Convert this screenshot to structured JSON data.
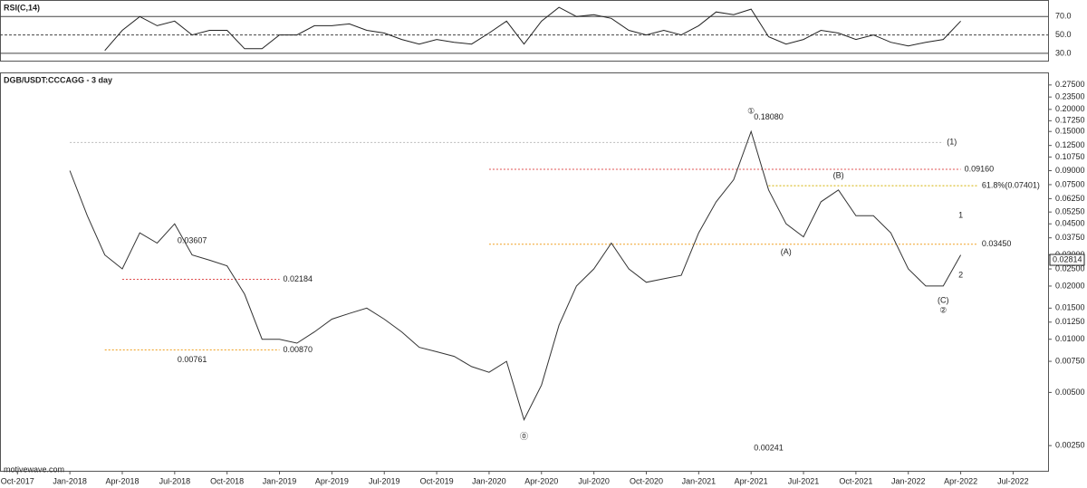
{
  "chart_data": [
    {
      "type": "line",
      "title": "RSI(C,14)",
      "x": [
        "Mar-2018",
        "Apr-2018",
        "May-2018",
        "Jun-2018",
        "Jul-2018",
        "Aug-2018",
        "Sep-2018",
        "Oct-2018",
        "Nov-2018",
        "Dec-2018",
        "Jan-2019",
        "Feb-2019",
        "Mar-2019",
        "Apr-2019",
        "May-2019",
        "Jun-2019",
        "Jul-2019",
        "Aug-2019",
        "Sep-2019",
        "Oct-2019",
        "Nov-2019",
        "Dec-2019",
        "Jan-2020",
        "Feb-2020",
        "Mar-2020",
        "Apr-2020",
        "May-2020",
        "Jun-2020",
        "Jul-2020",
        "Aug-2020",
        "Sep-2020",
        "Oct-2020",
        "Nov-2020",
        "Dec-2020",
        "Jan-2021",
        "Feb-2021",
        "Mar-2021",
        "Apr-2021",
        "May-2021",
        "Jun-2021",
        "Jul-2021",
        "Aug-2021",
        "Sep-2021",
        "Oct-2021",
        "Nov-2021",
        "Dec-2021",
        "Jan-2022",
        "Feb-2022",
        "Mar-2022",
        "Apr-2022"
      ],
      "series": [
        {
          "name": "RSI",
          "color": "#222222",
          "values": [
            33,
            55,
            70,
            60,
            65,
            50,
            55,
            55,
            35,
            35,
            50,
            50,
            60,
            60,
            62,
            55,
            52,
            45,
            40,
            45,
            42,
            40,
            52,
            65,
            40,
            65,
            80,
            70,
            72,
            68,
            55,
            50,
            55,
            50,
            60,
            75,
            72,
            78,
            48,
            40,
            45,
            55,
            52,
            45,
            50,
            42,
            38,
            42,
            45,
            65
          ]
        }
      ],
      "xlim": [
        "Sep-2017",
        "Sep-2022"
      ],
      "ylim": [
        22,
        87
      ],
      "yticks": [
        {
          "value": 70,
          "label": "70.0"
        },
        {
          "value": 50,
          "label": "50.0"
        },
        {
          "value": 30,
          "label": "30.0"
        }
      ]
    },
    {
      "type": "line",
      "title": "DGB/USDT:CCCAGG - 3 day",
      "log_scale": true,
      "x": [
        "Jan-2018",
        "Feb-2018",
        "Mar-2018",
        "Apr-2018",
        "May-2018",
        "Jun-2018",
        "Jul-2018",
        "Aug-2018",
        "Sep-2018",
        "Oct-2018",
        "Nov-2018",
        "Dec-2018",
        "Jan-2019",
        "Feb-2019",
        "Mar-2019",
        "Apr-2019",
        "May-2019",
        "Jun-2019",
        "Jul-2019",
        "Aug-2019",
        "Sep-2019",
        "Oct-2019",
        "Nov-2019",
        "Dec-2019",
        "Jan-2020",
        "Feb-2020",
        "Mar-2020",
        "Apr-2020",
        "May-2020",
        "Jun-2020",
        "Jul-2020",
        "Aug-2020",
        "Sep-2020",
        "Oct-2020",
        "Nov-2020",
        "Dec-2020",
        "Jan-2021",
        "Feb-2021",
        "Mar-2021",
        "Apr-2021",
        "May-2021",
        "Jun-2021",
        "Jul-2021",
        "Aug-2021",
        "Sep-2021",
        "Oct-2021",
        "Nov-2021",
        "Dec-2021",
        "Jan-2022",
        "Feb-2022",
        "Mar-2022",
        "Apr-2022"
      ],
      "series": [
        {
          "name": "DGB/USDT",
          "color": "#333333",
          "values": [
            0.09,
            0.05,
            0.03,
            0.025,
            0.04,
            0.035,
            0.045,
            0.03,
            0.028,
            0.026,
            0.018,
            0.01,
            0.01,
            0.0095,
            0.011,
            0.013,
            0.014,
            0.015,
            0.013,
            0.011,
            0.009,
            0.0085,
            0.008,
            0.007,
            0.0065,
            0.0075,
            0.0035,
            0.0055,
            0.012,
            0.02,
            0.025,
            0.035,
            0.025,
            0.021,
            0.022,
            0.023,
            0.04,
            0.06,
            0.08,
            0.15,
            0.07,
            0.045,
            0.038,
            0.06,
            0.07,
            0.05,
            0.05,
            0.04,
            0.025,
            0.02,
            0.02,
            0.03
          ]
        }
      ],
      "xlim": [
        "Sep-2017",
        "Sep-2022"
      ],
      "xticks": [
        "Oct-2017",
        "Jan-2018",
        "Apr-2018",
        "Jul-2018",
        "Oct-2018",
        "Jan-2019",
        "Apr-2019",
        "Jul-2019",
        "Oct-2019",
        "Jan-2020",
        "Apr-2020",
        "Jul-2020",
        "Oct-2020",
        "Jan-2021",
        "Apr-2021",
        "Jul-2021",
        "Oct-2021",
        "Jan-2022",
        "Apr-2022",
        "Jul-2022"
      ],
      "ylim": [
        0.0018,
        0.32
      ],
      "yticks": [
        {
          "value": 0.275,
          "label": "0.27500"
        },
        {
          "value": 0.235,
          "label": "0.23500"
        },
        {
          "value": 0.2,
          "label": "0.20000"
        },
        {
          "value": 0.1725,
          "label": "0.17250"
        },
        {
          "value": 0.15,
          "label": "0.15000"
        },
        {
          "value": 0.125,
          "label": "0.12500"
        },
        {
          "value": 0.1075,
          "label": "0.10750"
        },
        {
          "value": 0.09,
          "label": "0.09000"
        },
        {
          "value": 0.075,
          "label": "0.07500"
        },
        {
          "value": 0.0625,
          "label": "0.06250"
        },
        {
          "value": 0.0525,
          "label": "0.05250"
        },
        {
          "value": 0.045,
          "label": "0.04500"
        },
        {
          "value": 0.0375,
          "label": "0.03750"
        },
        {
          "value": 0.03,
          "label": "0.03000"
        },
        {
          "value": 0.025,
          "label": "0.02500"
        },
        {
          "value": 0.02,
          "label": "0.02000"
        },
        {
          "value": 0.015,
          "label": "0.01500"
        },
        {
          "value": 0.0125,
          "label": "0.01250"
        },
        {
          "value": 0.01,
          "label": "0.01000"
        },
        {
          "value": 0.0075,
          "label": "0.00750"
        },
        {
          "value": 0.005,
          "label": "0.00500"
        },
        {
          "value": 0.0025,
          "label": "0.00250"
        }
      ],
      "levels": [
        {
          "value": 0.13,
          "label": "(1)",
          "from": "Jan-2018",
          "to": "Mar-2022",
          "color": "#bbbbbb"
        },
        {
          "value": 0.0916,
          "label": "0.09160",
          "from": "Jan-2020",
          "to": "Apr-2022",
          "color": "#e05050"
        },
        {
          "value": 0.07401,
          "label": "61.8%(0.07401)",
          "from": "May-2021",
          "to": "May-2022",
          "color": "#d4b000"
        },
        {
          "value": 0.0345,
          "label": "0.03450",
          "from": "Jan-2020",
          "to": "May-2022",
          "color": "#f0a020"
        },
        {
          "value": 0.02184,
          "label": "0.02184",
          "from": "Apr-2018",
          "to": "Jan-2019",
          "color": "#e05050"
        },
        {
          "value": 0.0087,
          "label": "0.00870",
          "from": "Mar-2018",
          "to": "Jan-2019",
          "color": "#f0a020"
        }
      ],
      "price_labels": [
        {
          "x": "Aug-2018",
          "value": 0.03607,
          "label": "0.03607"
        },
        {
          "x": "Aug-2018",
          "value": 0.00761,
          "label": "0.00761"
        },
        {
          "x": "May-2021",
          "value": 0.1808,
          "label": "0.18080"
        },
        {
          "x": "May-2021",
          "value": 0.00241,
          "label": "0.00241"
        }
      ],
      "last_price": {
        "value": 0.02814,
        "label": "0.02814"
      },
      "annotations": [
        {
          "text": "①",
          "x": "Apr-2021",
          "y": 0.195,
          "color": "#222222"
        },
        {
          "text": "⓪",
          "x": "Mar-2020",
          "y": 0.0028,
          "color": "#222222"
        },
        {
          "text": "②",
          "x": "Mar-2022",
          "y": 0.0145,
          "color": "#222222"
        },
        {
          "text": "1",
          "x": "Apr-2022",
          "y": 0.05,
          "color": "#222222"
        },
        {
          "text": "2",
          "x": "Apr-2022",
          "y": 0.023,
          "color": "#222222"
        },
        {
          "text": "(A)",
          "x": "Jun-2021",
          "y": 0.031,
          "color": "#e05050"
        },
        {
          "text": "(B)",
          "x": "Sep-2021",
          "y": 0.084,
          "color": "#e05050"
        },
        {
          "text": "(C)",
          "x": "Mar-2022",
          "y": 0.0165,
          "color": "#e05050"
        }
      ],
      "source": "motivewave.com"
    }
  ]
}
